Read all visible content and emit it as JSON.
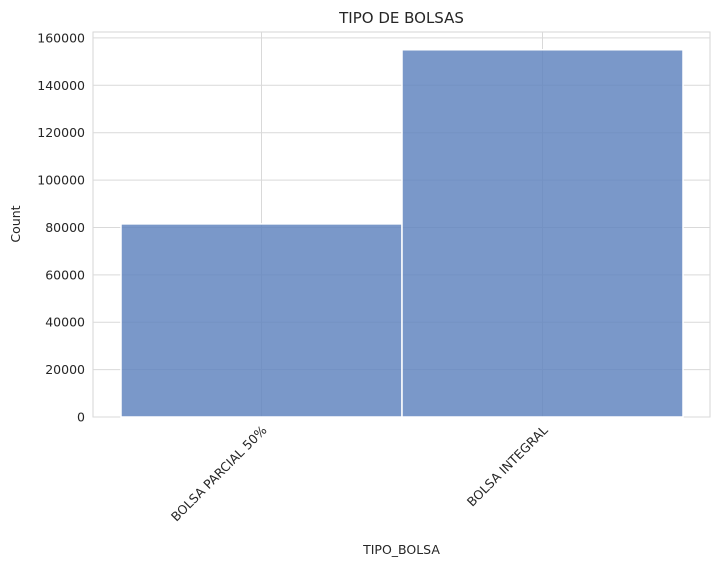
{
  "chart_data": {
    "type": "bar",
    "title": "TIPO DE BOLSAS",
    "xlabel": "TIPO_BOLSA",
    "ylabel": "Count",
    "categories": [
      "BOLSA PARCIAL 50%",
      "BOLSA INTEGRAL"
    ],
    "values": [
      81500,
      155000
    ],
    "ylim": [
      0,
      162500
    ],
    "yticks": [
      "0",
      "20000",
      "40000",
      "60000",
      "80000",
      "100000",
      "120000",
      "140000",
      "160000"
    ],
    "grid": true,
    "bar_color": "#5f83be",
    "background": "#ffffff",
    "grid_color": "#d9d9d9"
  }
}
